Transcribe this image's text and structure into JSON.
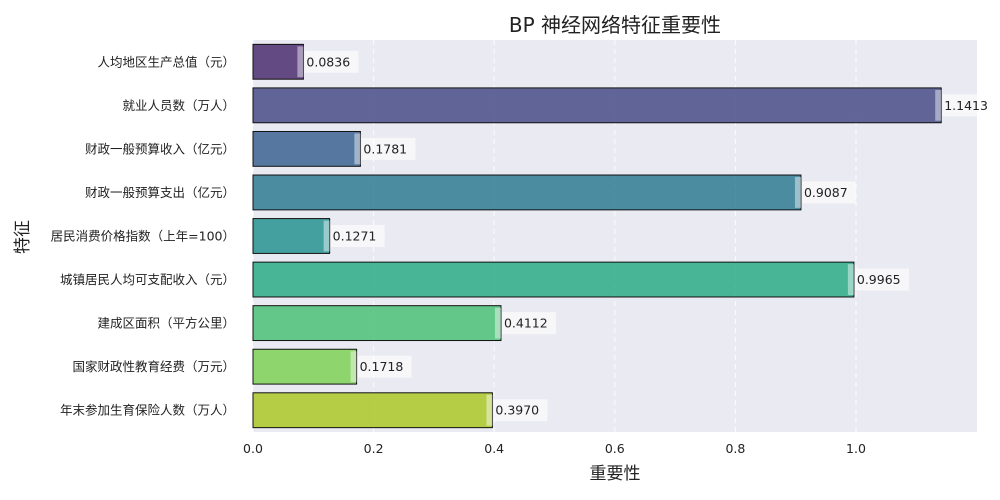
{
  "chart_data": {
    "type": "bar",
    "orientation": "horizontal",
    "title": "BP 神经网络特征重要性",
    "xlabel": "重要性",
    "ylabel": "特征",
    "xlim": [
      0,
      1.2
    ],
    "xticks": [
      "0.0",
      "0.2",
      "0.4",
      "0.6",
      "0.8",
      "1.0"
    ],
    "grid": true,
    "categories": [
      "人均地区生产总值（元）",
      "就业人员数（万人）",
      "财政一般预算收入（亿元）",
      "财政一般预算支出（亿元）",
      "居民消费价格指数（上年=100）",
      "城镇居民人均可支配收入（元）",
      "建成区面积（平方公里）",
      "国家财政性教育经费（万元）",
      "年末参加生育保险人数（万人）"
    ],
    "values": [
      0.0836,
      1.1413,
      0.1781,
      0.9087,
      0.1271,
      0.9965,
      0.4112,
      0.1718,
      0.397
    ],
    "value_labels": [
      "0.0836",
      "1.1413",
      "0.1781",
      "0.9087",
      "0.1271",
      "0.9965",
      "0.4112",
      "0.1718",
      "0.3970"
    ],
    "colors": [
      "#46276a",
      "#424783",
      "#355e8d",
      "#2a788e",
      "#20908c",
      "#24aa83",
      "#44bf70",
      "#7ad151",
      "#a8c71e"
    ]
  }
}
